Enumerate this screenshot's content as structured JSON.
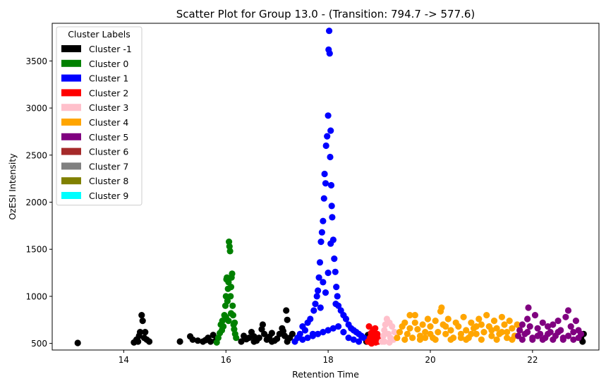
{
  "chart_data": {
    "type": "scatter",
    "title": "Scatter Plot for Group 13.0 -  (Transition: 794.7 -> 577.6)",
    "xlabel": "Retention Time",
    "ylabel": "OzESI Intensity",
    "xlim": [
      12.6,
      23.3
    ],
    "ylim": [
      430,
      3900
    ],
    "xticks": [
      14,
      16,
      18,
      20,
      22
    ],
    "yticks": [
      500,
      1000,
      1500,
      2000,
      2500,
      3000,
      3500
    ],
    "grid": false,
    "legend": {
      "title": "Cluster Labels",
      "placement": "top-left"
    },
    "series": [
      {
        "name": "Cluster -1",
        "color": "#000000",
        "points": [
          [
            13.1,
            505
          ],
          [
            14.2,
            510
          ],
          [
            14.25,
            540
          ],
          [
            14.3,
            580
          ],
          [
            14.32,
            620
          ],
          [
            14.35,
            800
          ],
          [
            14.37,
            740
          ],
          [
            14.4,
            560
          ],
          [
            14.42,
            620
          ],
          [
            14.45,
            540
          ],
          [
            14.5,
            520
          ],
          [
            14.28,
            520
          ],
          [
            15.1,
            520
          ],
          [
            15.3,
            575
          ],
          [
            15.35,
            540
          ],
          [
            15.45,
            530
          ],
          [
            15.55,
            520
          ],
          [
            15.6,
            535
          ],
          [
            15.65,
            560
          ],
          [
            15.75,
            590
          ],
          [
            15.8,
            530
          ],
          [
            15.7,
            520
          ],
          [
            16.3,
            520
          ],
          [
            16.35,
            580
          ],
          [
            16.4,
            545
          ],
          [
            16.45,
            560
          ],
          [
            16.5,
            620
          ],
          [
            16.55,
            575
          ],
          [
            16.6,
            530
          ],
          [
            16.65,
            560
          ],
          [
            16.7,
            650
          ],
          [
            16.72,
            700
          ],
          [
            16.75,
            600
          ],
          [
            16.8,
            540
          ],
          [
            16.85,
            570
          ],
          [
            16.9,
            610
          ],
          [
            16.95,
            530
          ],
          [
            17.0,
            550
          ],
          [
            17.05,
            600
          ],
          [
            17.1,
            660
          ],
          [
            17.12,
            630
          ],
          [
            17.15,
            580
          ],
          [
            17.18,
            850
          ],
          [
            17.2,
            750
          ],
          [
            17.25,
            560
          ],
          [
            17.3,
            600
          ],
          [
            16.55,
            520
          ],
          [
            16.9,
            520
          ],
          [
            17.2,
            520
          ],
          [
            18.75,
            520
          ],
          [
            18.8,
            560
          ],
          [
            18.78,
            590
          ],
          [
            22.95,
            555
          ],
          [
            23.0,
            600
          ],
          [
            22.98,
            520
          ]
        ]
      },
      {
        "name": "Cluster 0",
        "color": "#008000",
        "points": [
          [
            15.82,
            510
          ],
          [
            15.85,
            560
          ],
          [
            15.88,
            610
          ],
          [
            15.9,
            700
          ],
          [
            15.93,
            740
          ],
          [
            15.95,
            680
          ],
          [
            15.97,
            800
          ],
          [
            15.99,
            900
          ],
          [
            16.0,
            1000
          ],
          [
            16.01,
            1180
          ],
          [
            16.02,
            1200
          ],
          [
            16.03,
            950
          ],
          [
            16.04,
            1080
          ],
          [
            16.05,
            1150
          ],
          [
            16.06,
            1580
          ],
          [
            16.07,
            1530
          ],
          [
            16.08,
            1480
          ],
          [
            16.09,
            1000
          ],
          [
            16.1,
            1100
          ],
          [
            16.11,
            1200
          ],
          [
            16.12,
            1240
          ],
          [
            16.13,
            900
          ],
          [
            16.14,
            800
          ],
          [
            16.15,
            700
          ],
          [
            16.16,
            650
          ],
          [
            16.18,
            600
          ],
          [
            16.2,
            560
          ],
          [
            16.0,
            780
          ],
          [
            16.05,
            740
          ],
          [
            16.1,
            820
          ],
          [
            15.92,
            640
          ],
          [
            16.17,
            720
          ]
        ]
      },
      {
        "name": "Cluster 1",
        "color": "#0000ff",
        "points": [
          [
            17.35,
            520
          ],
          [
            17.4,
            560
          ],
          [
            17.45,
            600
          ],
          [
            17.5,
            680
          ],
          [
            17.55,
            640
          ],
          [
            17.6,
            720
          ],
          [
            17.65,
            760
          ],
          [
            17.7,
            600
          ],
          [
            17.72,
            850
          ],
          [
            17.75,
            920
          ],
          [
            17.78,
            1000
          ],
          [
            17.8,
            1060
          ],
          [
            17.82,
            1200
          ],
          [
            17.84,
            1360
          ],
          [
            17.86,
            1580
          ],
          [
            17.88,
            1680
          ],
          [
            17.9,
            1800
          ],
          [
            17.92,
            2040
          ],
          [
            17.93,
            2300
          ],
          [
            17.95,
            2200
          ],
          [
            17.96,
            2600
          ],
          [
            17.98,
            2700
          ],
          [
            18.0,
            2920
          ],
          [
            18.01,
            3620
          ],
          [
            18.02,
            3820
          ],
          [
            18.03,
            3580
          ],
          [
            18.04,
            2480
          ],
          [
            18.05,
            2760
          ],
          [
            18.06,
            2180
          ],
          [
            18.07,
            1960
          ],
          [
            18.08,
            1840
          ],
          [
            18.1,
            1600
          ],
          [
            18.12,
            1400
          ],
          [
            18.14,
            1260
          ],
          [
            18.16,
            1100
          ],
          [
            18.18,
            1000
          ],
          [
            18.2,
            900
          ],
          [
            18.25,
            850
          ],
          [
            18.3,
            800
          ],
          [
            18.35,
            760
          ],
          [
            18.4,
            700
          ],
          [
            18.45,
            660
          ],
          [
            18.5,
            640
          ],
          [
            18.55,
            620
          ],
          [
            18.6,
            600
          ],
          [
            18.65,
            580
          ],
          [
            18.7,
            560
          ],
          [
            17.5,
            540
          ],
          [
            17.6,
            560
          ],
          [
            17.7,
            580
          ],
          [
            17.8,
            600
          ],
          [
            17.9,
            620
          ],
          [
            18.0,
            640
          ],
          [
            18.1,
            660
          ],
          [
            18.2,
            680
          ],
          [
            18.3,
            620
          ],
          [
            18.4,
            560
          ],
          [
            18.5,
            540
          ],
          [
            18.6,
            520
          ],
          [
            17.95,
            1040
          ],
          [
            18.0,
            1250
          ],
          [
            17.9,
            1150
          ],
          [
            18.05,
            1560
          ],
          [
            17.85,
            880
          ],
          [
            18.15,
            920
          ]
        ]
      },
      {
        "name": "Cluster 2",
        "color": "#ff0000",
        "points": [
          [
            18.78,
            520
          ],
          [
            18.8,
            680
          ],
          [
            18.82,
            560
          ],
          [
            18.84,
            610
          ],
          [
            18.86,
            530
          ],
          [
            18.88,
            640
          ],
          [
            18.9,
            580
          ],
          [
            18.92,
            660
          ],
          [
            18.94,
            540
          ],
          [
            18.96,
            600
          ],
          [
            18.98,
            520
          ],
          [
            19.0,
            560
          ],
          [
            18.85,
            500
          ],
          [
            18.93,
            510
          ]
        ]
      },
      {
        "name": "Cluster 3",
        "color": "#ffc0cb",
        "points": [
          [
            19.05,
            520
          ],
          [
            19.08,
            580
          ],
          [
            19.1,
            640
          ],
          [
            19.12,
            700
          ],
          [
            19.15,
            760
          ],
          [
            19.18,
            600
          ],
          [
            19.2,
            720
          ],
          [
            19.22,
            560
          ],
          [
            19.25,
            680
          ],
          [
            19.28,
            540
          ],
          [
            19.3,
            620
          ],
          [
            19.1,
            520
          ],
          [
            19.2,
            510
          ]
        ]
      },
      {
        "name": "Cluster 4",
        "color": "#ffa500",
        "points": [
          [
            19.35,
            560
          ],
          [
            19.4,
            620
          ],
          [
            19.45,
            680
          ],
          [
            19.5,
            720
          ],
          [
            19.55,
            600
          ],
          [
            19.6,
            800
          ],
          [
            19.65,
            560
          ],
          [
            19.7,
            800
          ],
          [
            19.75,
            650
          ],
          [
            19.8,
            580
          ],
          [
            19.85,
            700
          ],
          [
            19.9,
            620
          ],
          [
            19.95,
            760
          ],
          [
            20.0,
            680
          ],
          [
            20.05,
            560
          ],
          [
            20.1,
            740
          ],
          [
            20.15,
            620
          ],
          [
            20.2,
            840
          ],
          [
            20.22,
            880
          ],
          [
            20.25,
            700
          ],
          [
            20.3,
            600
          ],
          [
            20.35,
            760
          ],
          [
            20.4,
            640
          ],
          [
            20.45,
            560
          ],
          [
            20.5,
            720
          ],
          [
            20.55,
            680
          ],
          [
            20.6,
            600
          ],
          [
            20.65,
            780
          ],
          [
            20.7,
            640
          ],
          [
            20.75,
            560
          ],
          [
            20.8,
            720
          ],
          [
            20.85,
            660
          ],
          [
            20.9,
            600
          ],
          [
            20.95,
            760
          ],
          [
            21.0,
            700
          ],
          [
            21.05,
            620
          ],
          [
            21.1,
            800
          ],
          [
            21.15,
            680
          ],
          [
            21.2,
            580
          ],
          [
            21.25,
            740
          ],
          [
            21.3,
            660
          ],
          [
            21.35,
            600
          ],
          [
            21.4,
            780
          ],
          [
            21.45,
            700
          ],
          [
            21.5,
            620
          ],
          [
            21.55,
            740
          ],
          [
            21.6,
            660
          ],
          [
            21.65,
            580
          ],
          [
            21.7,
            700
          ],
          [
            21.75,
            640
          ],
          [
            19.5,
            540
          ],
          [
            19.8,
            540
          ],
          [
            20.1,
            540
          ],
          [
            20.4,
            540
          ],
          [
            20.7,
            540
          ],
          [
            21.0,
            540
          ],
          [
            21.3,
            540
          ],
          [
            21.6,
            540
          ],
          [
            19.6,
            660
          ],
          [
            19.9,
            560
          ],
          [
            20.3,
            680
          ],
          [
            20.6,
            560
          ],
          [
            20.9,
            680
          ],
          [
            21.2,
            640
          ],
          [
            21.5,
            560
          ],
          [
            19.7,
            720
          ],
          [
            20.0,
            600
          ],
          [
            20.8,
            600
          ],
          [
            21.4,
            620
          ]
        ]
      },
      {
        "name": "Cluster 5",
        "color": "#800080",
        "points": [
          [
            21.72,
            580
          ],
          [
            21.75,
            640
          ],
          [
            21.8,
            700
          ],
          [
            21.85,
            600
          ],
          [
            21.9,
            760
          ],
          [
            21.92,
            880
          ],
          [
            21.95,
            680
          ],
          [
            22.0,
            560
          ],
          [
            22.05,
            800
          ],
          [
            22.1,
            660
          ],
          [
            22.15,
            600
          ],
          [
            22.2,
            720
          ],
          [
            22.25,
            560
          ],
          [
            22.3,
            680
          ],
          [
            22.35,
            620
          ],
          [
            22.4,
            700
          ],
          [
            22.45,
            580
          ],
          [
            22.5,
            740
          ],
          [
            22.55,
            640
          ],
          [
            22.6,
            560
          ],
          [
            22.65,
            780
          ],
          [
            22.7,
            850
          ],
          [
            22.75,
            680
          ],
          [
            22.8,
            620
          ],
          [
            22.85,
            740
          ],
          [
            22.9,
            560
          ],
          [
            22.95,
            600
          ],
          [
            21.8,
            540
          ],
          [
            22.0,
            540
          ],
          [
            22.2,
            540
          ],
          [
            22.4,
            540
          ],
          [
            22.6,
            540
          ],
          [
            22.8,
            540
          ],
          [
            21.9,
            620
          ],
          [
            22.1,
            580
          ],
          [
            22.3,
            600
          ],
          [
            22.5,
            620
          ],
          [
            22.7,
            580
          ],
          [
            22.9,
            640
          ]
        ]
      },
      {
        "name": "Cluster 6",
        "color": "#a52a2a",
        "points": []
      },
      {
        "name": "Cluster 7",
        "color": "#808080",
        "points": []
      },
      {
        "name": "Cluster 8",
        "color": "#808000",
        "points": []
      },
      {
        "name": "Cluster 9",
        "color": "#00ffff",
        "points": []
      }
    ]
  }
}
